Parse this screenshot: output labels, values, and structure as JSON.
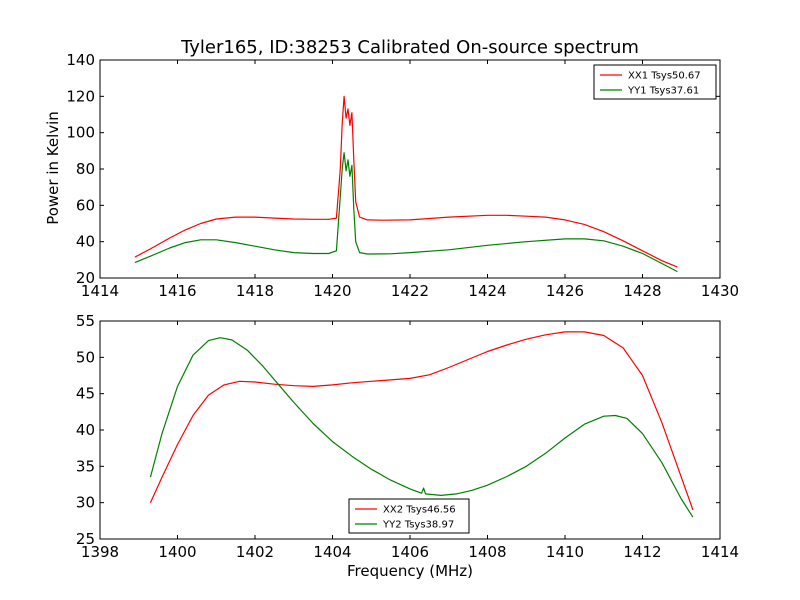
{
  "chart_data": [
    {
      "type": "line",
      "title": "Tyler165, ID:38253 Calibrated On-source spectrum",
      "xlabel": "",
      "ylabel": "Power in Kelvin",
      "xlim": [
        1414,
        1430
      ],
      "ylim": [
        20,
        140
      ],
      "xticks": [
        1414,
        1416,
        1418,
        1420,
        1422,
        1424,
        1426,
        1428,
        1430
      ],
      "yticks": [
        20,
        40,
        60,
        80,
        100,
        120,
        140
      ],
      "legend": "top-right",
      "series": [
        {
          "name": "XX1 Tsys50.67",
          "color": "#ff0000",
          "x": [
            1414.9,
            1415.3,
            1415.8,
            1416.2,
            1416.6,
            1417.0,
            1417.5,
            1418.0,
            1418.5,
            1419.0,
            1419.5,
            1419.9,
            1420.1,
            1420.2,
            1420.25,
            1420.3,
            1420.35,
            1420.4,
            1420.45,
            1420.5,
            1420.55,
            1420.6,
            1420.7,
            1420.9,
            1421.3,
            1422.0,
            1423.0,
            1424.0,
            1424.5,
            1425.0,
            1425.5,
            1426.0,
            1426.5,
            1427.0,
            1427.5,
            1428.0,
            1428.5,
            1428.9
          ],
          "y": [
            31.5,
            36,
            42,
            46.5,
            50,
            52.5,
            53.5,
            53.5,
            53,
            52.5,
            52.3,
            52.3,
            53,
            80,
            105,
            120,
            108,
            113,
            104,
            111,
            85,
            62,
            53.5,
            52,
            51.8,
            52,
            53.5,
            54.5,
            54.5,
            54,
            53.5,
            52,
            49.5,
            45.5,
            40.5,
            35,
            29.5,
            26
          ]
        },
        {
          "name": "YY1 Tsys37.61",
          "color": "#008000",
          "x": [
            1414.9,
            1415.3,
            1415.8,
            1416.2,
            1416.6,
            1417.0,
            1417.5,
            1418.0,
            1418.5,
            1419.0,
            1419.5,
            1419.9,
            1420.1,
            1420.2,
            1420.25,
            1420.3,
            1420.35,
            1420.4,
            1420.45,
            1420.5,
            1420.55,
            1420.6,
            1420.7,
            1420.9,
            1421.5,
            1422.0,
            1423.0,
            1424.0,
            1425.0,
            1426.0,
            1426.5,
            1427.0,
            1427.5,
            1428.0,
            1428.5,
            1428.9
          ],
          "y": [
            28.5,
            32,
            36.5,
            39.5,
            41,
            41,
            39.5,
            37.5,
            35.5,
            34,
            33.5,
            33.5,
            35,
            65,
            80,
            89,
            79,
            85,
            76,
            82,
            58,
            40,
            34,
            33.2,
            33.3,
            34,
            35.5,
            38,
            40,
            41.5,
            41.5,
            40.5,
            37.5,
            33.5,
            28,
            23.5
          ]
        }
      ]
    },
    {
      "type": "line",
      "title": "",
      "xlabel": "Frequency (MHz)",
      "ylabel": "",
      "xlim": [
        1398,
        1414
      ],
      "ylim": [
        25,
        55
      ],
      "xticks": [
        1398,
        1400,
        1402,
        1404,
        1406,
        1408,
        1410,
        1412,
        1414
      ],
      "yticks": [
        25,
        30,
        35,
        40,
        45,
        50,
        55
      ],
      "legend": "bottom-center",
      "series": [
        {
          "name": "XX2 Tsys46.56",
          "color": "#ff0000",
          "x": [
            1399.3,
            1399.6,
            1400.0,
            1400.4,
            1400.8,
            1401.2,
            1401.6,
            1402.0,
            1402.5,
            1403.0,
            1403.5,
            1404.0,
            1404.5,
            1405.0,
            1405.5,
            1406.0,
            1406.5,
            1407.0,
            1407.5,
            1408.0,
            1408.5,
            1409.0,
            1409.5,
            1410.0,
            1410.5,
            1411.0,
            1411.5,
            1412.0,
            1412.5,
            1413.0,
            1413.3
          ],
          "y": [
            30,
            33.5,
            38,
            42,
            44.8,
            46.2,
            46.7,
            46.6,
            46.3,
            46.1,
            46.0,
            46.2,
            46.5,
            46.7,
            46.9,
            47.1,
            47.6,
            48.6,
            49.7,
            50.8,
            51.7,
            52.5,
            53.1,
            53.5,
            53.5,
            53,
            51.3,
            47.5,
            41,
            33.5,
            29
          ]
        },
        {
          "name": "YY2 Tsys38.97",
          "color": "#008000",
          "x": [
            1399.3,
            1399.6,
            1400.0,
            1400.4,
            1400.8,
            1401.1,
            1401.4,
            1401.8,
            1402.2,
            1402.6,
            1403.0,
            1403.5,
            1404.0,
            1404.5,
            1405.0,
            1405.5,
            1406.0,
            1406.3,
            1406.35,
            1406.4,
            1406.8,
            1407.2,
            1407.6,
            1408.0,
            1408.5,
            1409.0,
            1409.5,
            1410.0,
            1410.5,
            1411.0,
            1411.3,
            1411.6,
            1412.0,
            1412.5,
            1413.0,
            1413.3
          ],
          "y": [
            33.5,
            39.5,
            46,
            50.3,
            52.3,
            52.7,
            52.4,
            51,
            48.8,
            46.3,
            43.8,
            40.9,
            38.4,
            36.4,
            34.6,
            33.1,
            31.9,
            31.3,
            32,
            31.2,
            31.0,
            31.2,
            31.7,
            32.4,
            33.6,
            35,
            36.8,
            38.9,
            40.8,
            41.9,
            42,
            41.6,
            39.5,
            35.5,
            30.5,
            28
          ]
        }
      ]
    }
  ]
}
